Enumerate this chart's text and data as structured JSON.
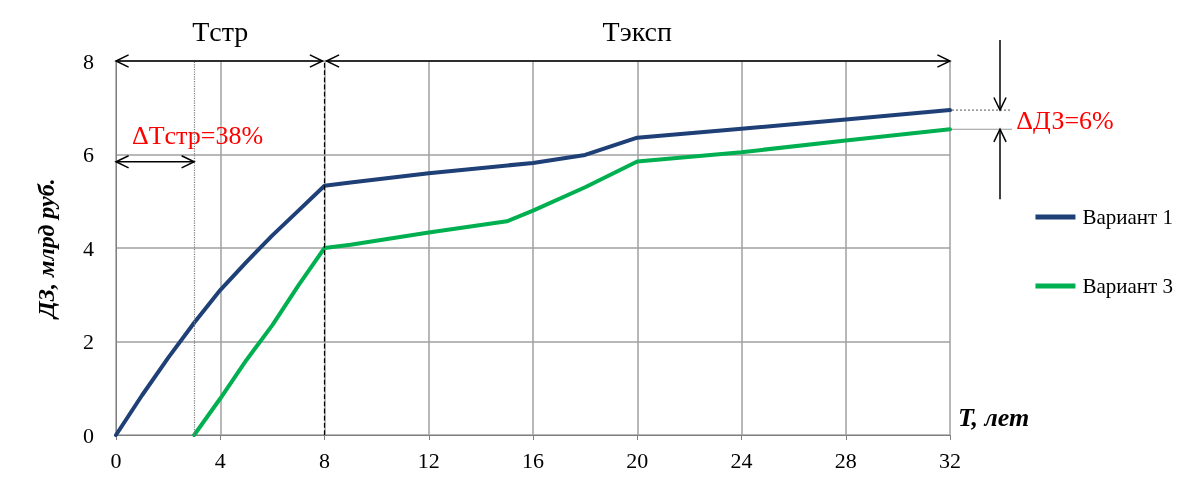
{
  "chart_data": {
    "type": "line",
    "xlabel": "T, лет",
    "ylabel": "ДЗ, млрд руб.",
    "xlim": [
      0,
      32
    ],
    "xticks": [
      0,
      4,
      8,
      12,
      16,
      20,
      24,
      28,
      32
    ],
    "ylim": [
      0,
      8
    ],
    "yticks": [
      0,
      2,
      4,
      6,
      8
    ],
    "grid": true,
    "legend": "right",
    "marker": "none",
    "line_style": "solid",
    "series": [
      {
        "name": "Вариант 1",
        "color": "#1f3f77",
        "x": [
          0,
          1,
          2,
          3,
          4,
          5,
          6,
          7,
          8,
          9,
          12,
          16,
          18,
          20,
          24,
          28,
          32
        ],
        "values": [
          0,
          0.85,
          1.65,
          2.4,
          3.1,
          3.7,
          4.27,
          4.8,
          5.33,
          5.4,
          5.6,
          5.82,
          5.99,
          6.36,
          6.55,
          6.75,
          6.95
        ]
      },
      {
        "name": "Вариант 3",
        "color": "#00b050",
        "x": [
          3,
          4,
          5,
          6,
          7,
          8,
          9,
          12,
          15,
          16,
          18,
          20,
          24,
          28,
          32
        ],
        "values": [
          0,
          0.78,
          1.6,
          2.35,
          3.2,
          4.0,
          4.07,
          4.33,
          4.57,
          4.8,
          5.3,
          5.85,
          6.05,
          6.3,
          6.54
        ]
      }
    ],
    "ref_lines": [
      {
        "axis": "x",
        "value": 8,
        "color": "#000000",
        "line_style": "dashed"
      },
      {
        "axis": "x",
        "value": 3,
        "color": "#808080",
        "line_style": "dotted"
      }
    ],
    "annotations": [
      "Tстр",
      "Tэксп",
      "ΔTстр=38%",
      "ΔДЗ=6%"
    ]
  }
}
